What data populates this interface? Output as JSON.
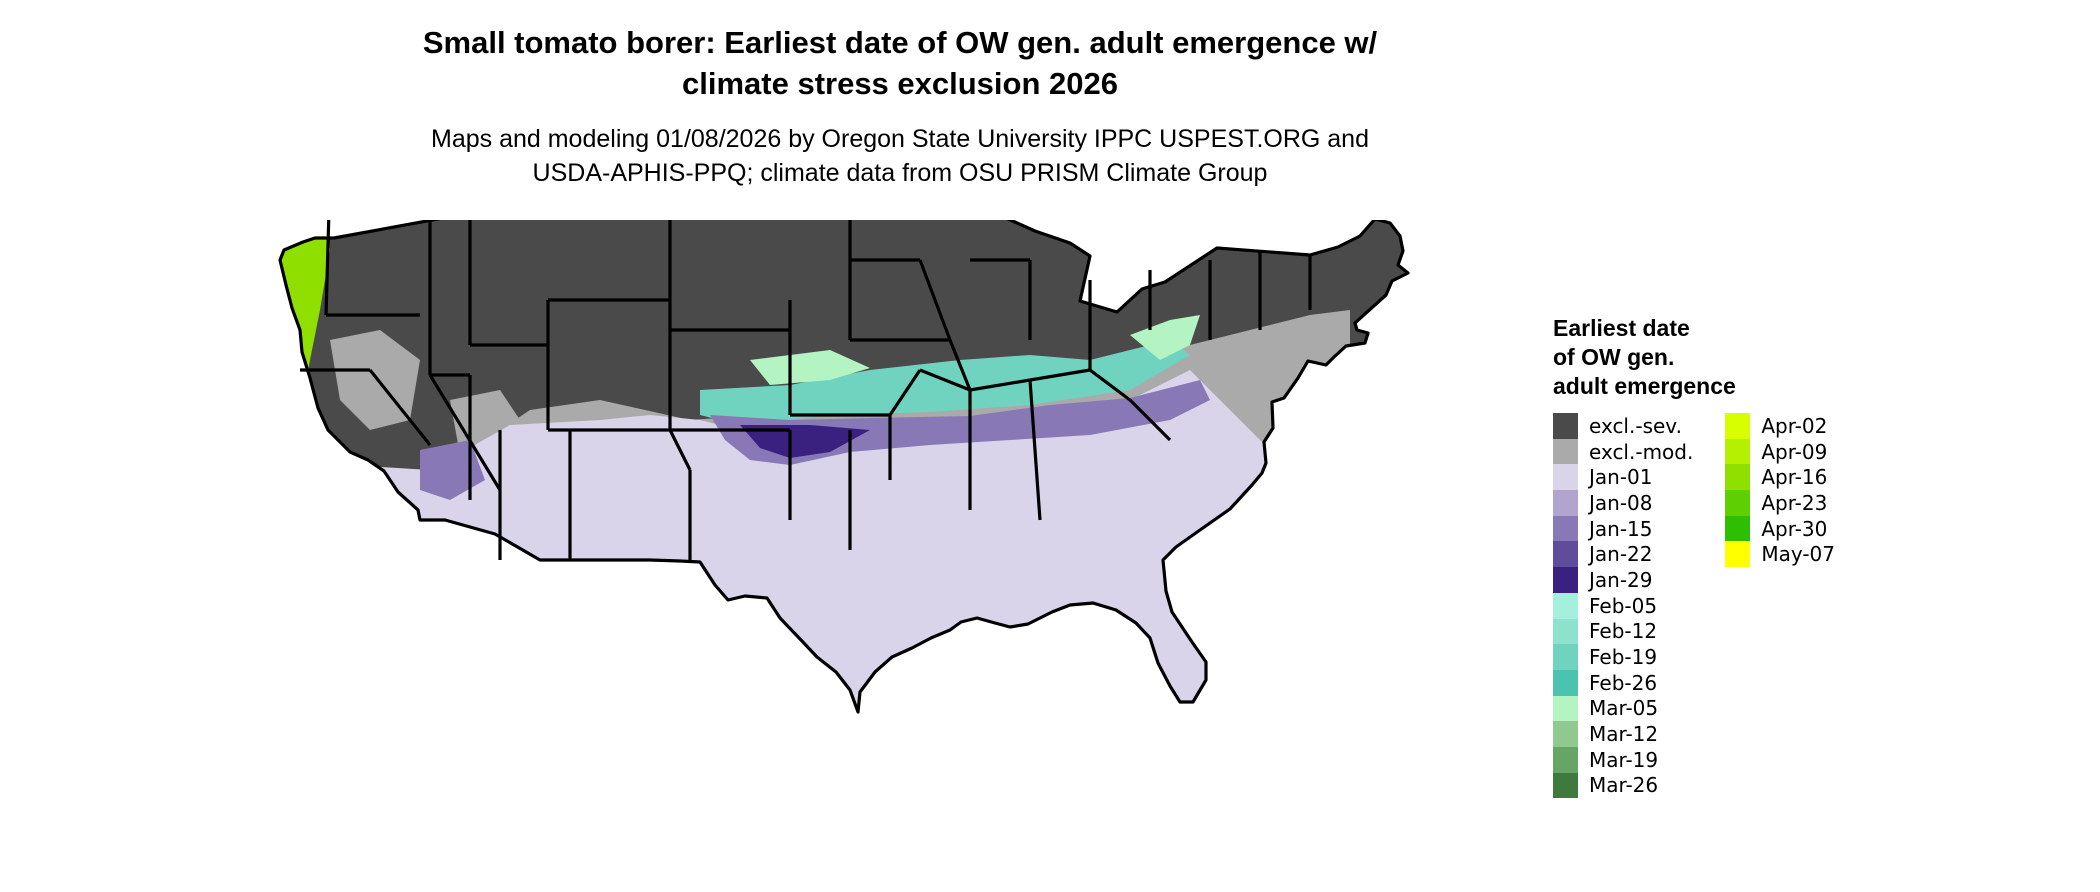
{
  "title": {
    "line1": "Small tomato borer: Earliest date of OW gen. adult emergence w/",
    "line2": "climate stress exclusion 2026"
  },
  "subtitle": {
    "line1": "Maps and modeling 01/08/2026 by Oregon State University IPPC USPEST.ORG and",
    "line2": "USDA-APHIS-PPQ; climate data from OSU PRISM Climate Group"
  },
  "legend": {
    "title_lines": [
      "Earliest date",
      "of OW gen.",
      "adult emergence"
    ],
    "col1": [
      {
        "label": "excl.-sev.",
        "color": "#4a4a4a"
      },
      {
        "label": "excl.-mod.",
        "color": "#aaaaaa"
      },
      {
        "label": "Jan-01",
        "color": "#d9d4ea"
      },
      {
        "label": "Jan-08",
        "color": "#b1a5d0"
      },
      {
        "label": "Jan-15",
        "color": "#8878b6"
      },
      {
        "label": "Jan-22",
        "color": "#5f4c9b"
      },
      {
        "label": "Jan-29",
        "color": "#3a2180"
      },
      {
        "label": "Feb-05",
        "color": "#a5f0dd"
      },
      {
        "label": "Feb-12",
        "color": "#8ce2cf"
      },
      {
        "label": "Feb-19",
        "color": "#6fd3c0"
      },
      {
        "label": "Feb-26",
        "color": "#4cc2b0"
      },
      {
        "label": "Mar-05",
        "color": "#b3f4c2"
      },
      {
        "label": "Mar-12",
        "color": "#8fc98f"
      },
      {
        "label": "Mar-19",
        "color": "#67a567"
      },
      {
        "label": "Mar-26",
        "color": "#3e7a3e"
      }
    ],
    "col2": [
      {
        "label": "Apr-02",
        "color": "#d8ff00"
      },
      {
        "label": "Apr-09",
        "color": "#b4f000"
      },
      {
        "label": "Apr-16",
        "color": "#8fe000"
      },
      {
        "label": "Apr-23",
        "color": "#5cd000"
      },
      {
        "label": "Apr-30",
        "color": "#2ec000"
      },
      {
        "label": "May-07",
        "color": "#ffff00"
      }
    ]
  },
  "map": {
    "colors": {
      "excl_sev": "#4a4a4a",
      "excl_mod": "#aaaaaa",
      "jan01": "#d9d4ea",
      "jan15": "#8878b6",
      "jan29": "#3a2180",
      "feb19": "#6fd3c0",
      "mar05": "#b3f4c2",
      "apr16": "#8fe000",
      "border": "#000000"
    }
  }
}
